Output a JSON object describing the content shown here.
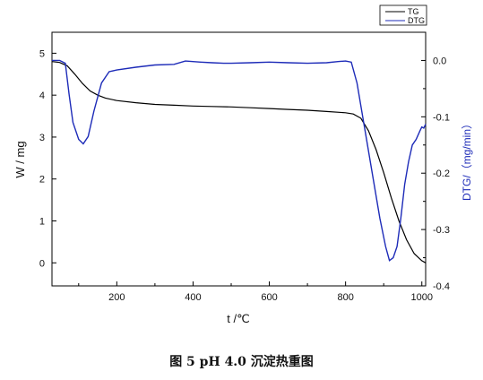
{
  "caption": "图 5    pH 4.0 沉淀热重图",
  "chart_data": {
    "type": "line",
    "xlabel": "t /℃",
    "ylabel_left": "W / mg",
    "ylabel_right": "DTG/（mg/min）",
    "xlim": [
      30,
      1010
    ],
    "ylim_left": [
      -0.55,
      5.5
    ],
    "ylim_right": [
      -0.4,
      0.05
    ],
    "x_ticks": [
      200,
      400,
      600,
      800,
      1000
    ],
    "y_ticks_left": [
      0,
      1,
      2,
      3,
      4,
      5
    ],
    "y_ticks_right": [
      0.0,
      -0.1,
      -0.2,
      -0.3,
      -0.4
    ],
    "grid": false,
    "legend_position": "top-right",
    "series": [
      {
        "name": "TG",
        "axis": "left",
        "color": "#000000",
        "x": [
          30,
          50,
          70,
          90,
          110,
          130,
          150,
          170,
          200,
          250,
          300,
          350,
          400,
          450,
          500,
          550,
          600,
          650,
          700,
          750,
          800,
          820,
          840,
          860,
          880,
          900,
          920,
          940,
          960,
          980,
          1000,
          1010
        ],
        "y": [
          4.8,
          4.78,
          4.7,
          4.5,
          4.28,
          4.1,
          4.0,
          3.93,
          3.87,
          3.82,
          3.78,
          3.76,
          3.74,
          3.73,
          3.72,
          3.7,
          3.68,
          3.66,
          3.64,
          3.61,
          3.58,
          3.55,
          3.45,
          3.15,
          2.7,
          2.15,
          1.55,
          1.0,
          0.55,
          0.22,
          0.05,
          0.0
        ]
      },
      {
        "name": "DTG",
        "axis": "right",
        "color": "#1d2bb8",
        "x": [
          30,
          50,
          65,
          75,
          85,
          100,
          112,
          125,
          140,
          160,
          180,
          200,
          250,
          300,
          350,
          380,
          400,
          420,
          450,
          480,
          500,
          550,
          600,
          650,
          700,
          750,
          780,
          800,
          815,
          830,
          850,
          870,
          890,
          905,
          915,
          925,
          935,
          945,
          955,
          965,
          975,
          985,
          995,
          1000,
          1005,
          1010
        ],
        "y": [
          0.0,
          0.0,
          -0.005,
          -0.06,
          -0.11,
          -0.14,
          -0.148,
          -0.135,
          -0.09,
          -0.04,
          -0.02,
          -0.017,
          -0.012,
          -0.008,
          -0.007,
          -0.001,
          -0.002,
          -0.003,
          -0.004,
          -0.005,
          -0.005,
          -0.004,
          -0.003,
          -0.004,
          -0.005,
          -0.004,
          -0.002,
          -0.001,
          -0.003,
          -0.04,
          -0.12,
          -0.2,
          -0.28,
          -0.33,
          -0.355,
          -0.35,
          -0.33,
          -0.28,
          -0.22,
          -0.18,
          -0.15,
          -0.14,
          -0.125,
          -0.118,
          -0.12,
          -0.113
        ]
      }
    ]
  }
}
